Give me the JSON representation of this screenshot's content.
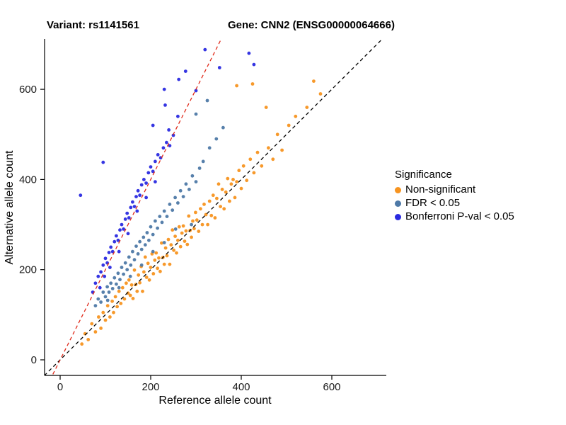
{
  "titles": {
    "left": "Variant: rs1141561",
    "right": "Gene: CNN2 (ENSG00000064666)"
  },
  "legend": {
    "title": "Significance"
  },
  "chart_data": {
    "type": "scatter",
    "xlabel": "Reference allele count",
    "ylabel": "Alternative allele count",
    "xlim": [
      -35,
      720
    ],
    "ylim": [
      -35,
      711
    ],
    "xticks": [
      0,
      200,
      400,
      600
    ],
    "yticks": [
      0,
      200,
      400,
      600
    ],
    "grid": false,
    "legend_position": "right",
    "reference_lines": [
      {
        "name": "identity-line",
        "slope": 1,
        "intercept": 0,
        "color": "#000000",
        "dash": "5,4"
      },
      {
        "name": "fit-line",
        "slope": 2,
        "intercept": 0,
        "color": "#E02A1A",
        "dash": "5,4"
      }
    ],
    "series": [
      {
        "name": "Non-significant",
        "color": "#F79420",
        "points": [
          [
            48,
            35
          ],
          [
            55,
            58
          ],
          [
            62,
            45
          ],
          [
            70,
            80
          ],
          [
            78,
            62
          ],
          [
            85,
            95
          ],
          [
            90,
            70
          ],
          [
            95,
            105
          ],
          [
            100,
            88
          ],
          [
            105,
            120
          ],
          [
            110,
            95
          ],
          [
            115,
            130
          ],
          [
            118,
            105
          ],
          [
            122,
            140
          ],
          [
            126,
            118
          ],
          [
            130,
            152
          ],
          [
            134,
            125
          ],
          [
            138,
            160
          ],
          [
            142,
            135
          ],
          [
            146,
            170
          ],
          [
            150,
            148
          ],
          [
            152,
            177
          ],
          [
            155,
            143
          ],
          [
            158,
            166
          ],
          [
            161,
            136
          ],
          [
            164,
            199
          ],
          [
            167,
            167
          ],
          [
            170,
            152
          ],
          [
            173,
            188
          ],
          [
            176,
            171
          ],
          [
            179,
            207
          ],
          [
            182,
            152
          ],
          [
            185,
            195
          ],
          [
            188,
            228
          ],
          [
            191,
            183
          ],
          [
            194,
            214
          ],
          [
            197,
            177
          ],
          [
            200,
            205
          ],
          [
            203,
            235
          ],
          [
            206,
            191
          ],
          [
            209,
            221
          ],
          [
            212,
            237
          ],
          [
            215,
            203
          ],
          [
            218,
            226
          ],
          [
            221,
            196
          ],
          [
            224,
            259
          ],
          [
            227,
            227
          ],
          [
            230,
            212
          ],
          [
            233,
            248
          ],
          [
            236,
            231
          ],
          [
            239,
            267
          ],
          [
            242,
            212
          ],
          [
            245,
            255
          ],
          [
            248,
            288
          ],
          [
            251,
            243
          ],
          [
            254,
            274
          ],
          [
            257,
            237
          ],
          [
            260,
            265
          ],
          [
            263,
            295
          ],
          [
            266,
            251
          ],
          [
            269,
            281
          ],
          [
            272,
            297
          ],
          [
            275,
            263
          ],
          [
            278,
            286
          ],
          [
            281,
            256
          ],
          [
            284,
            319
          ],
          [
            287,
            287
          ],
          [
            290,
            272
          ],
          [
            293,
            308
          ],
          [
            296,
            291
          ],
          [
            299,
            327
          ],
          [
            302,
            310
          ],
          [
            306,
            285
          ],
          [
            310,
            335
          ],
          [
            314,
            300
          ],
          [
            318,
            345
          ],
          [
            322,
            322
          ],
          [
            326,
            300
          ],
          [
            330,
            352
          ],
          [
            334,
            320
          ],
          [
            338,
            365
          ],
          [
            342,
            315
          ],
          [
            346,
            358
          ],
          [
            350,
            390
          ],
          [
            354,
            340
          ],
          [
            358,
            378
          ],
          [
            362,
            335
          ],
          [
            366,
            372
          ],
          [
            370,
            402
          ],
          [
            374,
            352
          ],
          [
            378,
            390
          ],
          [
            382,
            400
          ],
          [
            386,
            360
          ],
          [
            390,
            395
          ],
          [
            395,
            420
          ],
          [
            400,
            380
          ],
          [
            405,
            430
          ],
          [
            412,
            398
          ],
          [
            420,
            445
          ],
          [
            428,
            415
          ],
          [
            436,
            460
          ],
          [
            445,
            430
          ],
          [
            455,
            560
          ],
          [
            460,
            470
          ],
          [
            470,
            445
          ],
          [
            480,
            500
          ],
          [
            490,
            465
          ],
          [
            505,
            520
          ],
          [
            520,
            540
          ],
          [
            545,
            560
          ],
          [
            560,
            618
          ],
          [
            575,
            590
          ],
          [
            390,
            608
          ],
          [
            425,
            612
          ]
        ]
      },
      {
        "name": "FDR < 0.05",
        "color": "#4E79A7",
        "points": [
          [
            78,
            120
          ],
          [
            84,
            135
          ],
          [
            90,
            128
          ],
          [
            95,
            150
          ],
          [
            100,
            140
          ],
          [
            104,
            162
          ],
          [
            108,
            150
          ],
          [
            112,
            170
          ],
          [
            116,
            158
          ],
          [
            120,
            182
          ],
          [
            124,
            168
          ],
          [
            128,
            192
          ],
          [
            132,
            178
          ],
          [
            136,
            205
          ],
          [
            140,
            190
          ],
          [
            144,
            215
          ],
          [
            148,
            200
          ],
          [
            152,
            228
          ],
          [
            156,
            210
          ],
          [
            160,
            240
          ],
          [
            164,
            222
          ],
          [
            168,
            252
          ],
          [
            172,
            235
          ],
          [
            176,
            262
          ],
          [
            180,
            245
          ],
          [
            184,
            272
          ],
          [
            188,
            255
          ],
          [
            192,
            282
          ],
          [
            196,
            265
          ],
          [
            200,
            295
          ],
          [
            205,
            278
          ],
          [
            210,
            308
          ],
          [
            215,
            292
          ],
          [
            220,
            318
          ],
          [
            225,
            305
          ],
          [
            230,
            330
          ],
          [
            236,
            318
          ],
          [
            242,
            345
          ],
          [
            248,
            332
          ],
          [
            254,
            360
          ],
          [
            260,
            348
          ],
          [
            266,
            375
          ],
          [
            272,
            362
          ],
          [
            278,
            390
          ],
          [
            285,
            378
          ],
          [
            292,
            408
          ],
          [
            300,
            395
          ],
          [
            308,
            425
          ],
          [
            316,
            440
          ],
          [
            290,
            300
          ],
          [
            255,
            290
          ],
          [
            230,
            260
          ],
          [
            205,
            240
          ],
          [
            180,
            210
          ],
          [
            155,
            185
          ],
          [
            130,
            160
          ],
          [
            105,
            132
          ],
          [
            330,
            470
          ],
          [
            345,
            490
          ],
          [
            360,
            515
          ],
          [
            300,
            545
          ],
          [
            325,
            575
          ]
        ]
      },
      {
        "name": "Bonferroni P-val < 0.05",
        "color": "#2A2AE0",
        "points": [
          [
            72,
            150
          ],
          [
            78,
            170
          ],
          [
            84,
            185
          ],
          [
            90,
            195
          ],
          [
            95,
            210
          ],
          [
            100,
            225
          ],
          [
            104,
            215
          ],
          [
            108,
            238
          ],
          [
            112,
            250
          ],
          [
            116,
            240
          ],
          [
            120,
            262
          ],
          [
            124,
            275
          ],
          [
            128,
            265
          ],
          [
            132,
            288
          ],
          [
            136,
            300
          ],
          [
            140,
            290
          ],
          [
            144,
            312
          ],
          [
            148,
            325
          ],
          [
            152,
            315
          ],
          [
            156,
            338
          ],
          [
            160,
            350
          ],
          [
            164,
            340
          ],
          [
            168,
            362
          ],
          [
            172,
            375
          ],
          [
            176,
            365
          ],
          [
            180,
            388
          ],
          [
            185,
            400
          ],
          [
            190,
            392
          ],
          [
            195,
            415
          ],
          [
            200,
            428
          ],
          [
            205,
            418
          ],
          [
            210,
            440
          ],
          [
            216,
            455
          ],
          [
            222,
            448
          ],
          [
            228,
            470
          ],
          [
            235,
            482
          ],
          [
            242,
            475
          ],
          [
            250,
            498
          ],
          [
            150,
            280
          ],
          [
            130,
            240
          ],
          [
            110,
            205
          ],
          [
            170,
            330
          ],
          [
            190,
            360
          ],
          [
            210,
            395
          ],
          [
            98,
            185
          ],
          [
            88,
            160
          ],
          [
            45,
            365
          ],
          [
            95,
            438
          ],
          [
            230,
            600
          ],
          [
            262,
            622
          ],
          [
            277,
            640
          ],
          [
            320,
            688
          ],
          [
            352,
            648
          ],
          [
            417,
            680
          ],
          [
            300,
            597
          ],
          [
            232,
            565
          ],
          [
            260,
            540
          ],
          [
            205,
            520
          ],
          [
            240,
            510
          ],
          [
            428,
            655
          ]
        ]
      }
    ]
  }
}
